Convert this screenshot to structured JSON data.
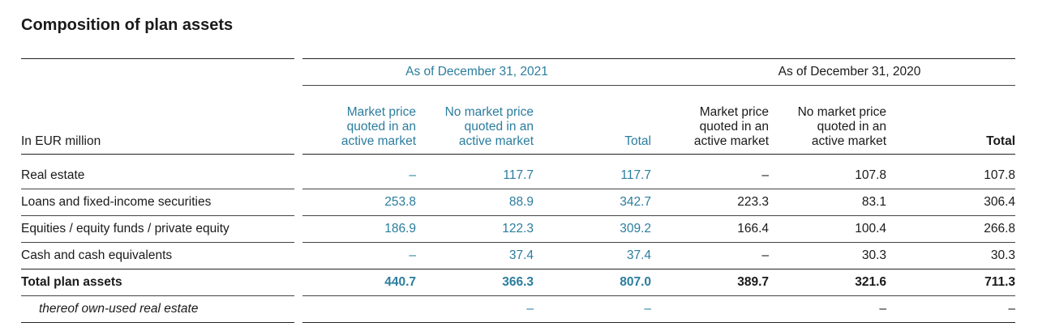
{
  "title": "Composition of plan assets",
  "unit_label": "In EUR million",
  "periods": [
    {
      "label": "As of December 31, 2021",
      "columns": [
        "Market price quoted in an active market",
        "No market price quoted in an active market",
        "Total"
      ],
      "columns_lines": [
        [
          "Market price",
          "quoted in an",
          "active market"
        ],
        [
          "No market price",
          "quoted in an",
          "active market"
        ],
        [
          "Total"
        ]
      ]
    },
    {
      "label": "As of December 31, 2020",
      "columns": [
        "Market price quoted in an active market",
        "No market price quoted in an active market",
        "Total"
      ],
      "columns_lines": [
        [
          "Market price",
          "quoted in an",
          "active market"
        ],
        [
          "No market price",
          "quoted in an",
          "active market"
        ],
        [
          "Total"
        ]
      ]
    }
  ],
  "rows": [
    {
      "label": "Real estate",
      "values": [
        "–",
        "117.7",
        "117.7",
        "–",
        "107.8",
        "107.8"
      ]
    },
    {
      "label": "Loans and fixed-income securities",
      "values": [
        "253.8",
        "88.9",
        "342.7",
        "223.3",
        "83.1",
        "306.4"
      ]
    },
    {
      "label": "Equities / equity funds / private equity",
      "values": [
        "186.9",
        "122.3",
        "309.2",
        "166.4",
        "100.4",
        "266.8"
      ]
    },
    {
      "label": "Cash and cash equivalents",
      "values": [
        "–",
        "37.4",
        "37.4",
        "–",
        "30.3",
        "30.3"
      ]
    },
    {
      "label": "Total plan assets",
      "values": [
        "440.7",
        "366.3",
        "807.0",
        "389.7",
        "321.6",
        "711.3"
      ]
    },
    {
      "label": "thereof own-used real estate",
      "values": [
        "",
        "–",
        "–",
        "",
        "–",
        "–"
      ]
    }
  ],
  "colors": {
    "accent": "#2b7d9e",
    "text": "#1a1a1a"
  }
}
